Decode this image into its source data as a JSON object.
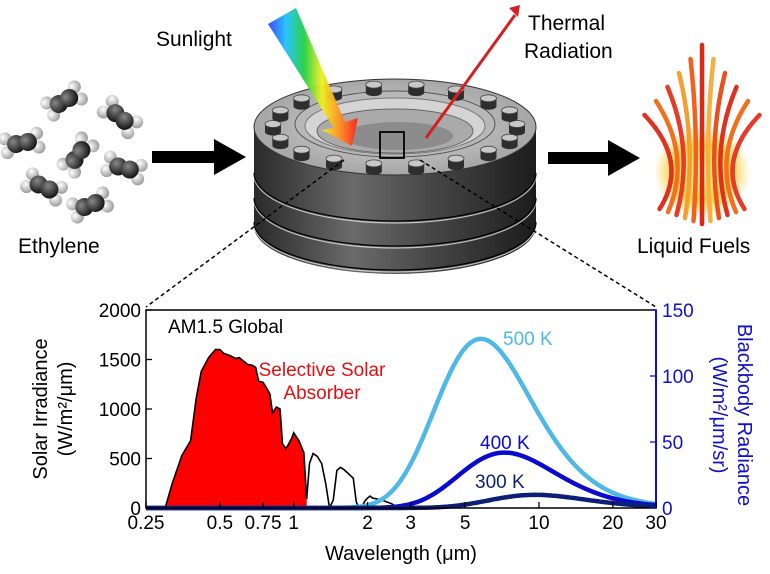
{
  "labels": {
    "sunlight": "Sunlight",
    "thermal_line1": "Thermal",
    "thermal_line2": "Radiation",
    "ethylene": "Ethylene",
    "liquid_fuels": "Liquid Fuels",
    "selective_line1": "Selective Solar",
    "selective_line2": "Absorber"
  },
  "colors": {
    "absorber_fill": "#ff0000",
    "spectrum_line": "#000000",
    "bb_500": "#4fb8e6",
    "bb_400": "#0a0ad0",
    "bb_300": "#0c1f78",
    "right_axis": "#1010c8",
    "thermal_arrow": "#d42020"
  },
  "chart_data": {
    "type": "line",
    "x_scale": "log",
    "xlabel": "Wavelength (μm)",
    "ylabel_left_line1": "Solar Irradiance",
    "ylabel_left_line2": "(W/m²/μm)",
    "ylabel_right_line1": "Blackbody Radiance",
    "ylabel_right_line2": "(W/m²/μm/sr)",
    "xlim": [
      0.25,
      30
    ],
    "ylim_left": [
      0,
      2000
    ],
    "ylim_right": [
      0,
      150
    ],
    "x_ticks": [
      0.25,
      0.5,
      0.75,
      1,
      2,
      3,
      5,
      10,
      20,
      30
    ],
    "x_tick_labels": [
      "0.25",
      "0.5",
      "0.75",
      "1",
      "2",
      "3",
      "5",
      "10",
      "20",
      "30"
    ],
    "y_left_ticks": [
      0,
      500,
      1000,
      1500,
      2000
    ],
    "y_left_tick_labels": [
      "0",
      "500",
      "1000",
      "1500",
      "2000"
    ],
    "y_right_ticks": [
      0,
      50,
      100,
      150
    ],
    "y_right_tick_labels": [
      "0",
      "50",
      "100",
      "150"
    ],
    "series": [
      {
        "name": "AM1.5 Global",
        "axis": "left",
        "x": [
          0.28,
          0.3,
          0.32,
          0.35,
          0.38,
          0.4,
          0.42,
          0.45,
          0.48,
          0.5,
          0.52,
          0.55,
          0.58,
          0.6,
          0.62,
          0.65,
          0.68,
          0.7,
          0.72,
          0.75,
          0.78,
          0.8,
          0.82,
          0.85,
          0.88,
          0.9,
          0.93,
          0.95,
          0.98,
          1.0,
          1.05,
          1.1,
          1.13,
          1.16,
          1.2,
          1.25,
          1.3,
          1.35,
          1.4,
          1.45,
          1.5,
          1.55,
          1.6,
          1.65,
          1.7,
          1.75,
          1.8,
          1.85,
          1.9,
          1.95,
          2.0,
          2.05,
          2.1,
          2.2,
          2.3,
          2.4,
          2.5,
          2.6,
          2.8,
          3.0,
          3.5,
          4.0
        ],
        "y": [
          0,
          10,
          250,
          530,
          680,
          1100,
          1380,
          1520,
          1600,
          1600,
          1560,
          1540,
          1510,
          1520,
          1490,
          1450,
          1440,
          1420,
          1280,
          1270,
          1200,
          1150,
          960,
          1020,
          1000,
          650,
          600,
          640,
          700,
          760,
          680,
          560,
          90,
          450,
          550,
          520,
          450,
          250,
          0,
          80,
          380,
          410,
          390,
          360,
          330,
          300,
          60,
          0,
          15,
          70,
          100,
          120,
          100,
          90,
          80,
          60,
          45,
          20,
          0,
          0,
          0,
          0
        ]
      },
      {
        "name": "500 K",
        "axis": "right",
        "curve": "planck",
        "temperature": 500,
        "label": "500 K"
      },
      {
        "name": "400 K",
        "axis": "right",
        "curve": "planck",
        "temperature": 400,
        "label": "400 K"
      },
      {
        "name": "300 K",
        "axis": "right",
        "curve": "planck",
        "temperature": 300,
        "label": "300 K"
      }
    ],
    "shaded_region": {
      "series": "AM1.5 Global",
      "x_range": [
        0.28,
        1.13
      ]
    }
  }
}
